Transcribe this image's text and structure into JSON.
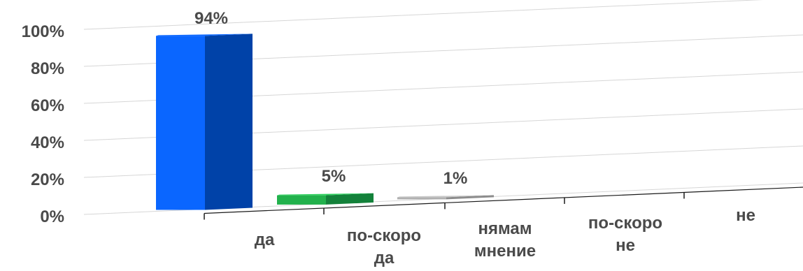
{
  "chart_data": {
    "type": "bar",
    "categories": [
      [
        "да"
      ],
      [
        "по-скоро",
        "да"
      ],
      [
        "нямам",
        "мнение"
      ],
      [
        "по-скоро",
        "не"
      ],
      [
        "не"
      ]
    ],
    "values": [
      94,
      5,
      1,
      0,
      0
    ],
    "value_labels": [
      "94%",
      "5%",
      "1%",
      "",
      ""
    ],
    "y_ticks": [
      "0%",
      "20%",
      "40%",
      "60%",
      "80%",
      "100%"
    ],
    "ylim": [
      0,
      100
    ],
    "grid": true,
    "bar_colors": [
      {
        "front": "#0a66ff",
        "side": "#0042a8",
        "top": "#0a66ff"
      },
      {
        "front": "#22b14c",
        "side": "#13813a",
        "top": "#2ccf5c"
      },
      {
        "front": "#b0b0b0",
        "side": "#8c8c8c",
        "top": "#c8c8c8"
      }
    ]
  }
}
